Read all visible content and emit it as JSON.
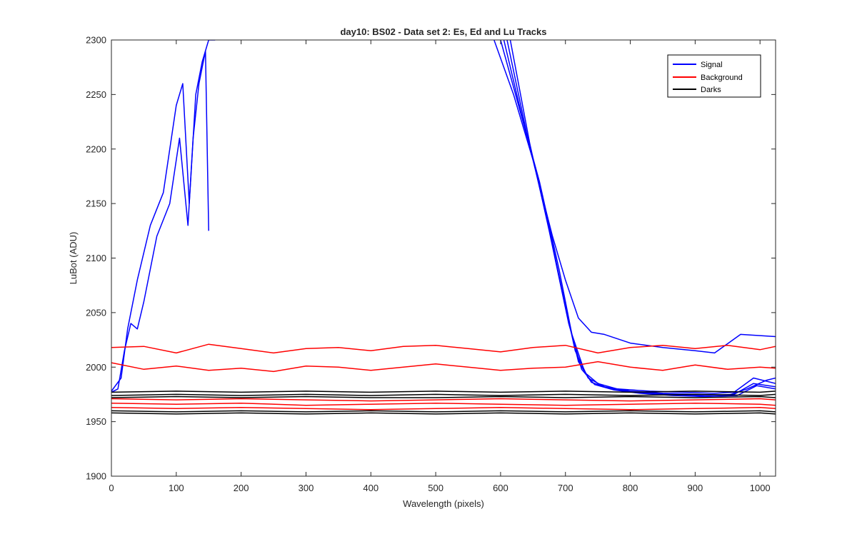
{
  "chart_data": {
    "type": "line",
    "title": "day10: BS02 - Data set 2: Es, Ed and Lu Tracks",
    "xlabel": "Wavelength (pixels)",
    "ylabel": "LuBot (ADU)",
    "xlim": [
      0,
      1024
    ],
    "ylim": [
      1900,
      2300
    ],
    "xticks": [
      0,
      100,
      200,
      300,
      400,
      500,
      600,
      700,
      800,
      900,
      1000
    ],
    "yticks": [
      1900,
      1950,
      2000,
      2050,
      2100,
      2150,
      2200,
      2250,
      2300
    ],
    "grid": false,
    "legend_position": "top-right",
    "legend": [
      {
        "label": "Signal",
        "color": "#0000ff"
      },
      {
        "label": "Background",
        "color": "#ff0000"
      },
      {
        "label": "Darks",
        "color": "#000000"
      }
    ],
    "series": [
      {
        "group": "Signal",
        "color": "#0000ff",
        "x": [
          0,
          15,
          25,
          40,
          60,
          80,
          100,
          110,
          120,
          130,
          140,
          150,
          160
        ],
        "y": [
          1978,
          1990,
          2035,
          2080,
          2130,
          2160,
          2240,
          2260,
          2150,
          2250,
          2280,
          2300,
          2300
        ]
      },
      {
        "group": "Signal",
        "color": "#0000ff",
        "x": [
          0,
          10,
          20,
          30,
          40,
          50,
          70,
          90,
          105,
          118,
          126,
          135,
          145,
          150
        ],
        "y": [
          1977,
          1980,
          2015,
          2040,
          2035,
          2060,
          2120,
          2150,
          2210,
          2130,
          2210,
          2260,
          2290,
          2125
        ]
      },
      {
        "group": "Signal",
        "color": "#0000ff",
        "x": [
          590,
          620,
          650,
          680,
          700,
          720,
          740,
          760,
          800,
          850,
          900,
          930,
          970,
          1024
        ],
        "y": [
          2300,
          2250,
          2190,
          2120,
          2080,
          2045,
          2032,
          2030,
          2022,
          2018,
          2015,
          2013,
          2030,
          2028
        ]
      },
      {
        "group": "Signal",
        "color": "#0000ff",
        "x": [
          600,
          630,
          660,
          690,
          710,
          730,
          750,
          780,
          830,
          880,
          930,
          960,
          990,
          1024
        ],
        "y": [
          2300,
          2235,
          2170,
          2090,
          2030,
          1995,
          1985,
          1980,
          1978,
          1977,
          1976,
          1977,
          1990,
          1985
        ]
      },
      {
        "group": "Signal",
        "color": "#0000ff",
        "x": [
          605,
          635,
          665,
          695,
          715,
          735,
          760,
          800,
          850,
          900,
          950,
          980,
          1010,
          1024
        ],
        "y": [
          2300,
          2225,
          2155,
          2070,
          2015,
          1990,
          1982,
          1978,
          1976,
          1975,
          1974,
          1980,
          1988,
          1990
        ]
      },
      {
        "group": "Signal",
        "color": "#0000ff",
        "x": [
          610,
          640,
          670,
          700,
          720,
          740,
          770,
          810,
          860,
          910,
          960,
          990,
          1024
        ],
        "y": [
          2300,
          2215,
          2140,
          2055,
          2005,
          1986,
          1980,
          1977,
          1975,
          1974,
          1975,
          1985,
          1982
        ]
      },
      {
        "group": "Signal",
        "color": "#0000ff",
        "x": [
          615,
          645,
          675,
          705,
          725,
          745,
          775,
          815,
          865,
          915,
          965,
          995,
          1024
        ],
        "y": [
          2300,
          2205,
          2125,
          2040,
          1998,
          1984,
          1979,
          1976,
          1974,
          1973,
          1974,
          1983,
          1980
        ]
      },
      {
        "group": "Background",
        "color": "#ff0000",
        "x": [
          0,
          50,
          100,
          150,
          200,
          250,
          300,
          350,
          400,
          450,
          500,
          550,
          600,
          650,
          700,
          750,
          800,
          850,
          900,
          950,
          1000,
          1024
        ],
        "y": [
          2018,
          2019,
          2013,
          2021,
          2017,
          2013,
          2017,
          2018,
          2015,
          2019,
          2020,
          2017,
          2014,
          2018,
          2020,
          2013,
          2018,
          2020,
          2017,
          2020,
          2016,
          2019
        ]
      },
      {
        "group": "Background",
        "color": "#ff0000",
        "x": [
          0,
          50,
          100,
          150,
          200,
          250,
          300,
          350,
          400,
          450,
          500,
          550,
          600,
          650,
          700,
          750,
          800,
          850,
          900,
          950,
          1000,
          1024
        ],
        "y": [
          2004,
          1998,
          2001,
          1997,
          1999,
          1996,
          2001,
          2000,
          1997,
          2000,
          2003,
          2000,
          1997,
          1999,
          2000,
          2005,
          2000,
          1997,
          2002,
          1998,
          2000,
          1999
        ]
      },
      {
        "group": "Background",
        "color": "#ff0000",
        "x": [
          0,
          100,
          200,
          300,
          400,
          500,
          600,
          700,
          800,
          900,
          1000,
          1024
        ],
        "y": [
          1971,
          1970,
          1971,
          1970,
          1969,
          1970,
          1971,
          1970,
          1969,
          1970,
          1971,
          1970
        ]
      },
      {
        "group": "Background",
        "color": "#ff0000",
        "x": [
          0,
          100,
          200,
          300,
          400,
          500,
          600,
          700,
          800,
          900,
          1000,
          1024
        ],
        "y": [
          1967,
          1966,
          1967,
          1965,
          1966,
          1967,
          1966,
          1965,
          1966,
          1967,
          1966,
          1965
        ]
      },
      {
        "group": "Background",
        "color": "#ff0000",
        "x": [
          0,
          100,
          200,
          300,
          400,
          500,
          600,
          700,
          800,
          900,
          1000,
          1024
        ],
        "y": [
          1963,
          1962,
          1963,
          1962,
          1961,
          1962,
          1963,
          1962,
          1961,
          1962,
          1963,
          1962
        ]
      },
      {
        "group": "Darks",
        "color": "#000000",
        "x": [
          0,
          100,
          200,
          300,
          400,
          500,
          600,
          700,
          800,
          900,
          1000,
          1024
        ],
        "y": [
          1977,
          1978,
          1977,
          1978,
          1977,
          1978,
          1977,
          1978,
          1977,
          1978,
          1977,
          1978
        ]
      },
      {
        "group": "Darks",
        "color": "#000000",
        "x": [
          0,
          100,
          200,
          300,
          400,
          500,
          600,
          700,
          800,
          900,
          1000,
          1024
        ],
        "y": [
          1974,
          1975,
          1974,
          1975,
          1974,
          1975,
          1974,
          1975,
          1974,
          1975,
          1974,
          1975
        ]
      },
      {
        "group": "Darks",
        "color": "#000000",
        "x": [
          0,
          100,
          200,
          300,
          400,
          500,
          600,
          700,
          800,
          900,
          1000,
          1024
        ],
        "y": [
          1972,
          1973,
          1972,
          1973,
          1972,
          1972,
          1973,
          1972,
          1973,
          1972,
          1973,
          1972
        ]
      },
      {
        "group": "Darks",
        "color": "#000000",
        "x": [
          0,
          100,
          200,
          300,
          400,
          500,
          600,
          700,
          800,
          900,
          1000,
          1024
        ],
        "y": [
          1960,
          1959,
          1960,
          1959,
          1960,
          1959,
          1960,
          1959,
          1960,
          1959,
          1960,
          1959
        ]
      },
      {
        "group": "Darks",
        "color": "#000000",
        "x": [
          0,
          100,
          200,
          300,
          400,
          500,
          600,
          700,
          800,
          900,
          1000,
          1024
        ],
        "y": [
          1958,
          1957,
          1958,
          1957,
          1958,
          1957,
          1958,
          1957,
          1958,
          1957,
          1958,
          1957
        ]
      }
    ]
  }
}
